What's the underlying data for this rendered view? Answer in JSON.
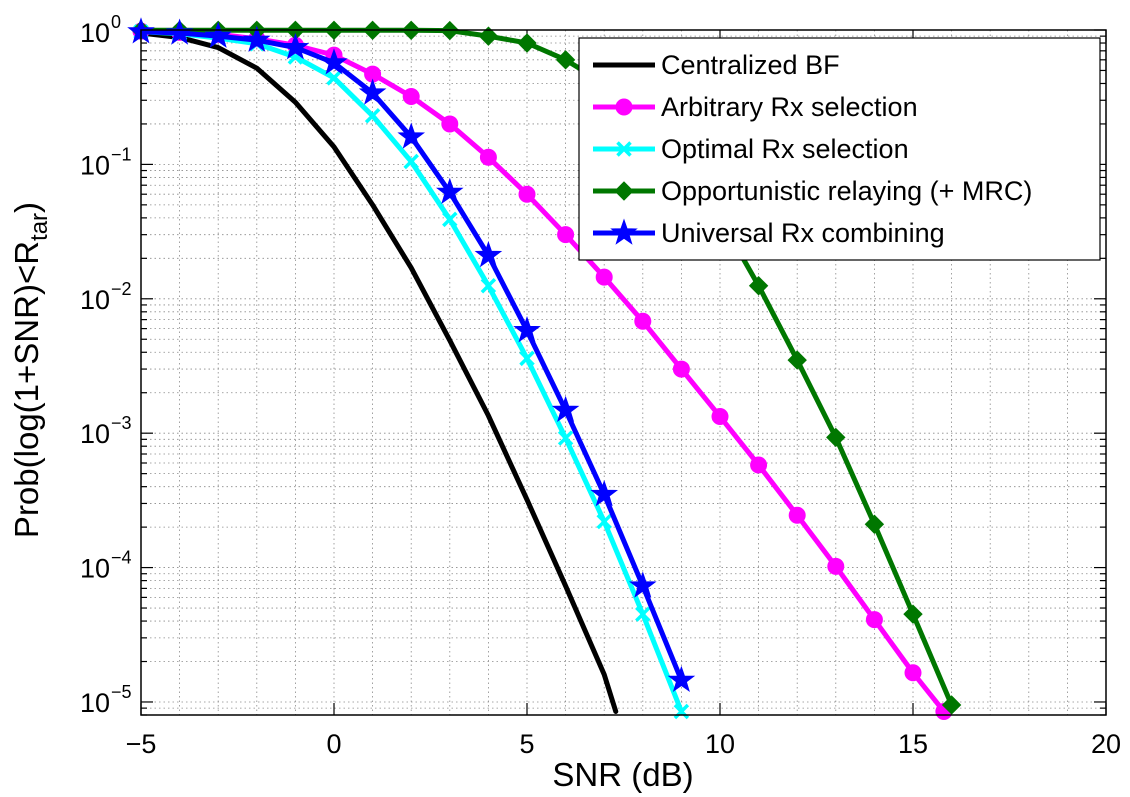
{
  "chart_data": {
    "type": "line",
    "xlabel": "SNR (dB)",
    "ylabel_main": "Prob(log(1+SNR)<R",
    "ylabel_sub": "tar",
    "ylabel_close": ")",
    "xlim": [
      -5,
      20
    ],
    "ylim": [
      8e-06,
      1
    ],
    "yscale": "log",
    "grid": true,
    "legend_position": "top-right",
    "xticks": [
      {
        "value": -5,
        "label": "−5"
      },
      {
        "value": 0,
        "label": "0"
      },
      {
        "value": 5,
        "label": "5"
      },
      {
        "value": 10,
        "label": "10"
      },
      {
        "value": 15,
        "label": "15"
      },
      {
        "value": 20,
        "label": "20"
      }
    ],
    "yticks": [
      {
        "value": 1,
        "base": "10",
        "exp": "0"
      },
      {
        "value": 0.1,
        "base": "10",
        "exp": "−1"
      },
      {
        "value": 0.01,
        "base": "10",
        "exp": "−2"
      },
      {
        "value": 0.001,
        "base": "10",
        "exp": "−3"
      },
      {
        "value": 0.0001,
        "base": "10",
        "exp": "−4"
      },
      {
        "value": 1e-05,
        "base": "10",
        "exp": "−5"
      }
    ],
    "series": [
      {
        "name": "Centralized BF",
        "color": "#000000",
        "marker": "none",
        "x": [
          -5,
          -4,
          -3,
          -2,
          -1,
          0,
          1,
          2,
          3,
          4,
          5,
          6,
          7,
          7.3
        ],
        "y": [
          0.95,
          0.88,
          0.74,
          0.52,
          0.29,
          0.135,
          0.05,
          0.017,
          0.0049,
          0.00135,
          0.00032,
          7.3e-05,
          1.6e-05,
          8.5e-06
        ]
      },
      {
        "name": "Arbitrary Rx selection",
        "color": "#ff00ff",
        "marker": "circle",
        "x": [
          -5,
          -4,
          -3,
          -2,
          -1,
          0,
          1,
          2,
          3,
          4,
          5,
          6,
          7,
          8,
          9,
          10,
          11,
          12,
          13,
          14,
          15,
          15.8
        ],
        "y": [
          0.98,
          0.96,
          0.93,
          0.86,
          0.77,
          0.65,
          0.47,
          0.32,
          0.2,
          0.113,
          0.06,
          0.03,
          0.0145,
          0.0068,
          0.003,
          0.00133,
          0.00058,
          0.000245,
          0.000102,
          4.1e-05,
          1.65e-05,
          8.5e-06
        ]
      },
      {
        "name": "Optimal Rx selection",
        "color": "#00ffff",
        "marker": "x",
        "x": [
          -5,
          -4,
          -3,
          -2,
          -1,
          0,
          1,
          2,
          3,
          4,
          5,
          6,
          7,
          8,
          9
        ],
        "y": [
          0.97,
          0.94,
          0.87,
          0.79,
          0.63,
          0.44,
          0.23,
          0.105,
          0.039,
          0.0125,
          0.0036,
          0.00092,
          0.00022,
          4.5e-05,
          8.5e-06
        ]
      },
      {
        "name": "Opportunistic relaying (+ MRC)",
        "color": "#007700",
        "marker": "diamond",
        "x": [
          -5,
          -4,
          -3,
          -2,
          -1,
          0,
          1,
          2,
          3,
          4,
          5,
          6,
          7,
          8,
          9,
          10,
          11,
          12,
          13,
          14,
          15,
          16
        ],
        "y": [
          0.995,
          0.995,
          0.995,
          0.995,
          0.995,
          0.995,
          0.995,
          0.995,
          0.99,
          0.9,
          0.8,
          0.6,
          0.4,
          0.22,
          0.1,
          0.04,
          0.0125,
          0.0035,
          0.00093,
          0.00021,
          4.5e-05,
          9.5e-06
        ]
      },
      {
        "name": "Universal Rx combining",
        "color": "#0000ff",
        "marker": "star",
        "x": [
          -5,
          -4,
          -3,
          -2,
          -1,
          0,
          1,
          2,
          3,
          4,
          5,
          6,
          7,
          8,
          9
        ],
        "y": [
          0.97,
          0.95,
          0.9,
          0.84,
          0.74,
          0.57,
          0.34,
          0.16,
          0.062,
          0.021,
          0.0058,
          0.00148,
          0.00035,
          7.3e-05,
          1.45e-05
        ]
      }
    ]
  }
}
